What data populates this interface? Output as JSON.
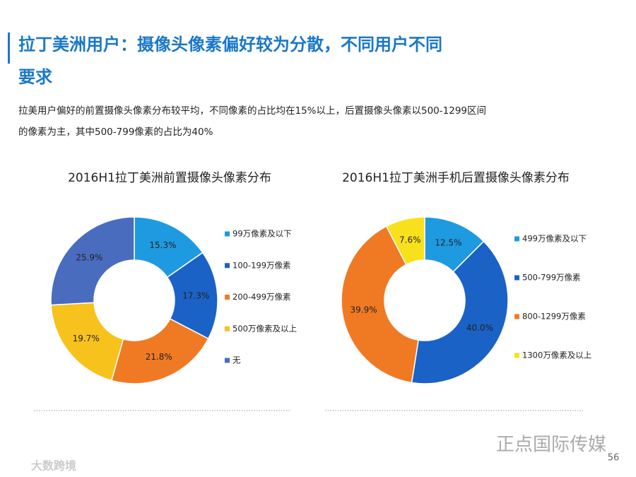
{
  "title": "拉丁美洲用户：摄像头像素偏好较为分散，不同用户不同要求",
  "description": "拉美用户偏好的前置摄像头像素分布较平均，不同像素的占比均在15%以上，后置摄像头像素以500-1299区间的像素为主，其中500-799像素的占比为40%",
  "page_number": "56",
  "watermark": "正点国际传媒",
  "logo": "大数跨境",
  "chart_data": [
    {
      "type": "donut",
      "title": "2016H1拉丁美洲前置摄像头像素分布",
      "categories": [
        "99万像素及以下",
        "100-199万像素",
        "200-499万像素",
        "500万像素及以上",
        "无"
      ],
      "values": [
        15.3,
        17.3,
        21.8,
        19.7,
        25.9
      ],
      "value_labels": [
        "15.3%",
        "17.3%",
        "21.8%",
        "19.7%",
        "25.9%"
      ],
      "colors": [
        "#1e9ae0",
        "#1b62c6",
        "#f07a24",
        "#f8c21c",
        "#4a6cbf"
      ]
    },
    {
      "type": "donut",
      "title": "2016H1拉丁美洲手机后置摄像头像素分布",
      "categories": [
        "499万像素及以下",
        "500-799万像素",
        "800-1299万像素",
        "1300万像素及以上"
      ],
      "values": [
        12.5,
        40.0,
        39.9,
        7.6
      ],
      "value_labels": [
        "12.5%",
        "40.0%",
        "39.9%",
        "7.6%"
      ],
      "colors": [
        "#1e9ae0",
        "#1b62c6",
        "#f07a24",
        "#f8e11c"
      ]
    }
  ]
}
